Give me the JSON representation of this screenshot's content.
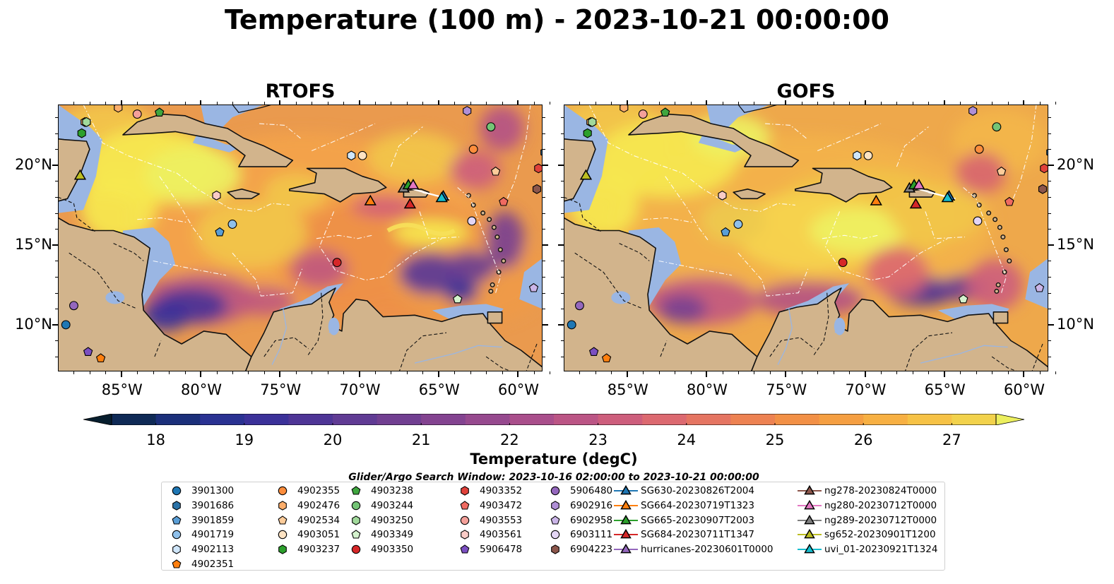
{
  "figure_title": "Temperature (100 m) - 2023-10-21 00:00:00",
  "panels": [
    {
      "title": "RTOFS",
      "model": "RTOFS"
    },
    {
      "title": "GOFS",
      "model": "GOFS"
    }
  ],
  "map_extent": {
    "lon_min": -89,
    "lon_max": -58,
    "lat_min": 7,
    "lat_max": 23.8
  },
  "lon_ticks": [
    {
      "value": -85,
      "label": "85°W"
    },
    {
      "value": -80,
      "label": "80°W"
    },
    {
      "value": -75,
      "label": "75°W"
    },
    {
      "value": -70,
      "label": "70°W"
    },
    {
      "value": -65,
      "label": "65°W"
    },
    {
      "value": -60,
      "label": "60°W"
    }
  ],
  "lat_ticks": [
    {
      "value": 20,
      "label": "20°N"
    },
    {
      "value": 15,
      "label": "15°N"
    },
    {
      "value": 10,
      "label": "10°N"
    }
  ],
  "colors": {
    "land": "#d2b48c",
    "shelf": "#9ab6e3",
    "deep": "#0b2436"
  },
  "colorbar": {
    "title": "Temperature (degC)",
    "min": 17.5,
    "max": 27.5,
    "ticks": [
      18,
      19,
      20,
      21,
      22,
      23,
      24,
      25,
      26,
      27
    ],
    "colors": [
      "#071e2e",
      "#0f2a56",
      "#1b2f7a",
      "#2a3292",
      "#3b3199",
      "#4e3596",
      "#603b94",
      "#713f91",
      "#834390",
      "#96498e",
      "#a94e8b",
      "#bb5585",
      "#cd5e7c",
      "#dc6970",
      "#e57562",
      "#ed8252",
      "#f29046",
      "#f59f42",
      "#f7b043",
      "#f6c246",
      "#f2d24c",
      "#ecef5e"
    ],
    "extend": "both"
  },
  "search_window": "Glider/Argo Search Window: 2023-10-16 02:00:00 to 2023-10-21 00:00:00",
  "legend": {
    "columns": [
      [
        {
          "label": "3901300",
          "marker": "circle",
          "color": "#1f77b4"
        },
        {
          "label": "3901686",
          "marker": "hexagon",
          "color": "#2b73a8"
        },
        {
          "label": "3901859",
          "marker": "pentagon",
          "color": "#5a9ed6"
        },
        {
          "label": "4901719",
          "marker": "circle",
          "color": "#8fc0ea"
        },
        {
          "label": "4902113",
          "marker": "hexagon",
          "color": "#cfe6fa"
        },
        {
          "label": "4902351",
          "marker": "pentagon",
          "color": "#ff7f0e"
        }
      ],
      [
        {
          "label": "4902355",
          "marker": "circle",
          "color": "#fd8d3c"
        },
        {
          "label": "4902476",
          "marker": "hexagon",
          "color": "#fdae6b"
        },
        {
          "label": "4902534",
          "marker": "pentagon",
          "color": "#fdcc9a"
        },
        {
          "label": "4903051",
          "marker": "circle",
          "color": "#fde3c3"
        },
        {
          "label": "4903237",
          "marker": "hexagon",
          "color": "#2ca02c"
        }
      ],
      [
        {
          "label": "4903238",
          "marker": "pentagon",
          "color": "#3fa63f"
        },
        {
          "label": "4903244",
          "marker": "circle",
          "color": "#74c476"
        },
        {
          "label": "4903250",
          "marker": "hexagon",
          "color": "#a1d99b"
        },
        {
          "label": "4903349",
          "marker": "pentagon",
          "color": "#d4f2cd"
        },
        {
          "label": "4903350",
          "marker": "circle",
          "color": "#d62728"
        }
      ],
      [
        {
          "label": "4903352",
          "marker": "hexagon",
          "color": "#e0413a"
        },
        {
          "label": "4903472",
          "marker": "pentagon",
          "color": "#ef6a61"
        },
        {
          "label": "4903553",
          "marker": "circle",
          "color": "#f4a09a"
        },
        {
          "label": "4903561",
          "marker": "hexagon",
          "color": "#f9cbc6"
        },
        {
          "label": "5906478",
          "marker": "pentagon",
          "color": "#7b4fc1"
        }
      ],
      [
        {
          "label": "5906480",
          "marker": "circle",
          "color": "#9467bd"
        },
        {
          "label": "6902916",
          "marker": "hexagon",
          "color": "#b08fd6"
        },
        {
          "label": "6902958",
          "marker": "pentagon",
          "color": "#cbb5e8"
        },
        {
          "label": "6903111",
          "marker": "circle",
          "color": "#e3d5f4"
        },
        {
          "label": "6904223",
          "marker": "hexagon",
          "color": "#8c564b"
        }
      ],
      [
        {
          "label": "SG630-20230826T2004",
          "marker": "triangle",
          "color": "#1f77b4"
        },
        {
          "label": "SG664-20230719T1323",
          "marker": "triangle",
          "color": "#ff7f0e"
        },
        {
          "label": "SG665-20230907T2003",
          "marker": "triangle",
          "color": "#2ca02c"
        },
        {
          "label": "SG684-20230711T1347",
          "marker": "triangle",
          "color": "#d62728"
        },
        {
          "label": "hurricanes-20230601T0000",
          "marker": "triangle",
          "color": "#9467bd"
        }
      ],
      [
        {
          "label": "ng278-20230824T0000",
          "marker": "triangle",
          "color": "#8c564b"
        },
        {
          "label": "ng280-20230712T0000",
          "marker": "triangle",
          "color": "#e377c2"
        },
        {
          "label": "ng289-20230712T0000",
          "marker": "triangle",
          "color": "#7f7f7f"
        },
        {
          "label": "sg652-20230901T1200",
          "marker": "triangle",
          "color": "#bcbd22"
        },
        {
          "label": "uvi_01-20230921T1324",
          "marker": "triangle",
          "color": "#17becf"
        }
      ]
    ]
  },
  "floats": [
    {
      "label": "3901300",
      "lon": -88.5,
      "lat": 10.0
    },
    {
      "label": "3901686",
      "lon": -58.3,
      "lat": 20.8
    },
    {
      "label": "3901859",
      "lon": -78.8,
      "lat": 15.8
    },
    {
      "label": "4901719",
      "lon": -78.0,
      "lat": 16.3
    },
    {
      "label": "4902113",
      "lon": -70.5,
      "lat": 20.6
    },
    {
      "label": "4902351",
      "lon": -86.3,
      "lat": 7.9
    },
    {
      "label": "4902355",
      "lon": -62.8,
      "lat": 21.0
    },
    {
      "label": "4902476",
      "lon": -87.3,
      "lat": 22.7
    },
    {
      "label": "4902534",
      "lon": -61.4,
      "lat": 19.6
    },
    {
      "label": "4903051",
      "lon": -69.8,
      "lat": 20.6
    },
    {
      "label": "4903237",
      "lon": -87.5,
      "lat": 22.0
    },
    {
      "label": "4903238",
      "lon": -82.6,
      "lat": 23.3
    },
    {
      "label": "4903244",
      "lon": -61.7,
      "lat": 22.4
    },
    {
      "label": "4903250",
      "lon": -87.2,
      "lat": 22.7
    },
    {
      "label": "4903349",
      "lon": -63.8,
      "lat": 11.6
    },
    {
      "label": "4903350",
      "lon": -71.4,
      "lat": 13.9
    },
    {
      "label": "4903352",
      "lon": -58.7,
      "lat": 19.8
    },
    {
      "label": "4903472",
      "lon": -60.9,
      "lat": 17.7
    },
    {
      "label": "4903553",
      "lon": -84.0,
      "lat": 23.2
    },
    {
      "label": "4903561",
      "lon": -79.0,
      "lat": 18.1
    },
    {
      "label": "5906478",
      "lon": -87.1,
      "lat": 8.3
    },
    {
      "label": "5906480",
      "lon": -88.0,
      "lat": 11.2
    },
    {
      "label": "6902916",
      "lon": -63.2,
      "lat": 23.4
    },
    {
      "label": "6902958",
      "lon": -59.0,
      "lat": 12.3
    },
    {
      "label": "6903111",
      "lon": -62.9,
      "lat": 16.5
    },
    {
      "label": "6904223",
      "lon": -58.8,
      "lat": 18.5
    },
    {
      "label": "4902476",
      "lon": -85.2,
      "lat": 23.6
    }
  ],
  "gliders": [
    {
      "label": "sg652-20230901T1200",
      "lon": -87.6,
      "lat": 19.4
    },
    {
      "label": "SG664-20230719T1323",
      "lon": -69.3,
      "lat": 17.8
    },
    {
      "label": "ng289-20230712T0000",
      "lon": -67.2,
      "lat": 18.6
    },
    {
      "label": "SG665-20230907T2003",
      "lon": -66.9,
      "lat": 18.8
    },
    {
      "label": "ng280-20230712T0000",
      "lon": -66.6,
      "lat": 18.8
    },
    {
      "label": "SG684-20230711T1347",
      "lon": -66.8,
      "lat": 17.6
    },
    {
      "label": "SG630-20230826T2004",
      "lon": -64.7,
      "lat": 18.1
    },
    {
      "label": "uvi_01-20230921T1324",
      "lon": -64.8,
      "lat": 18.0
    }
  ]
}
